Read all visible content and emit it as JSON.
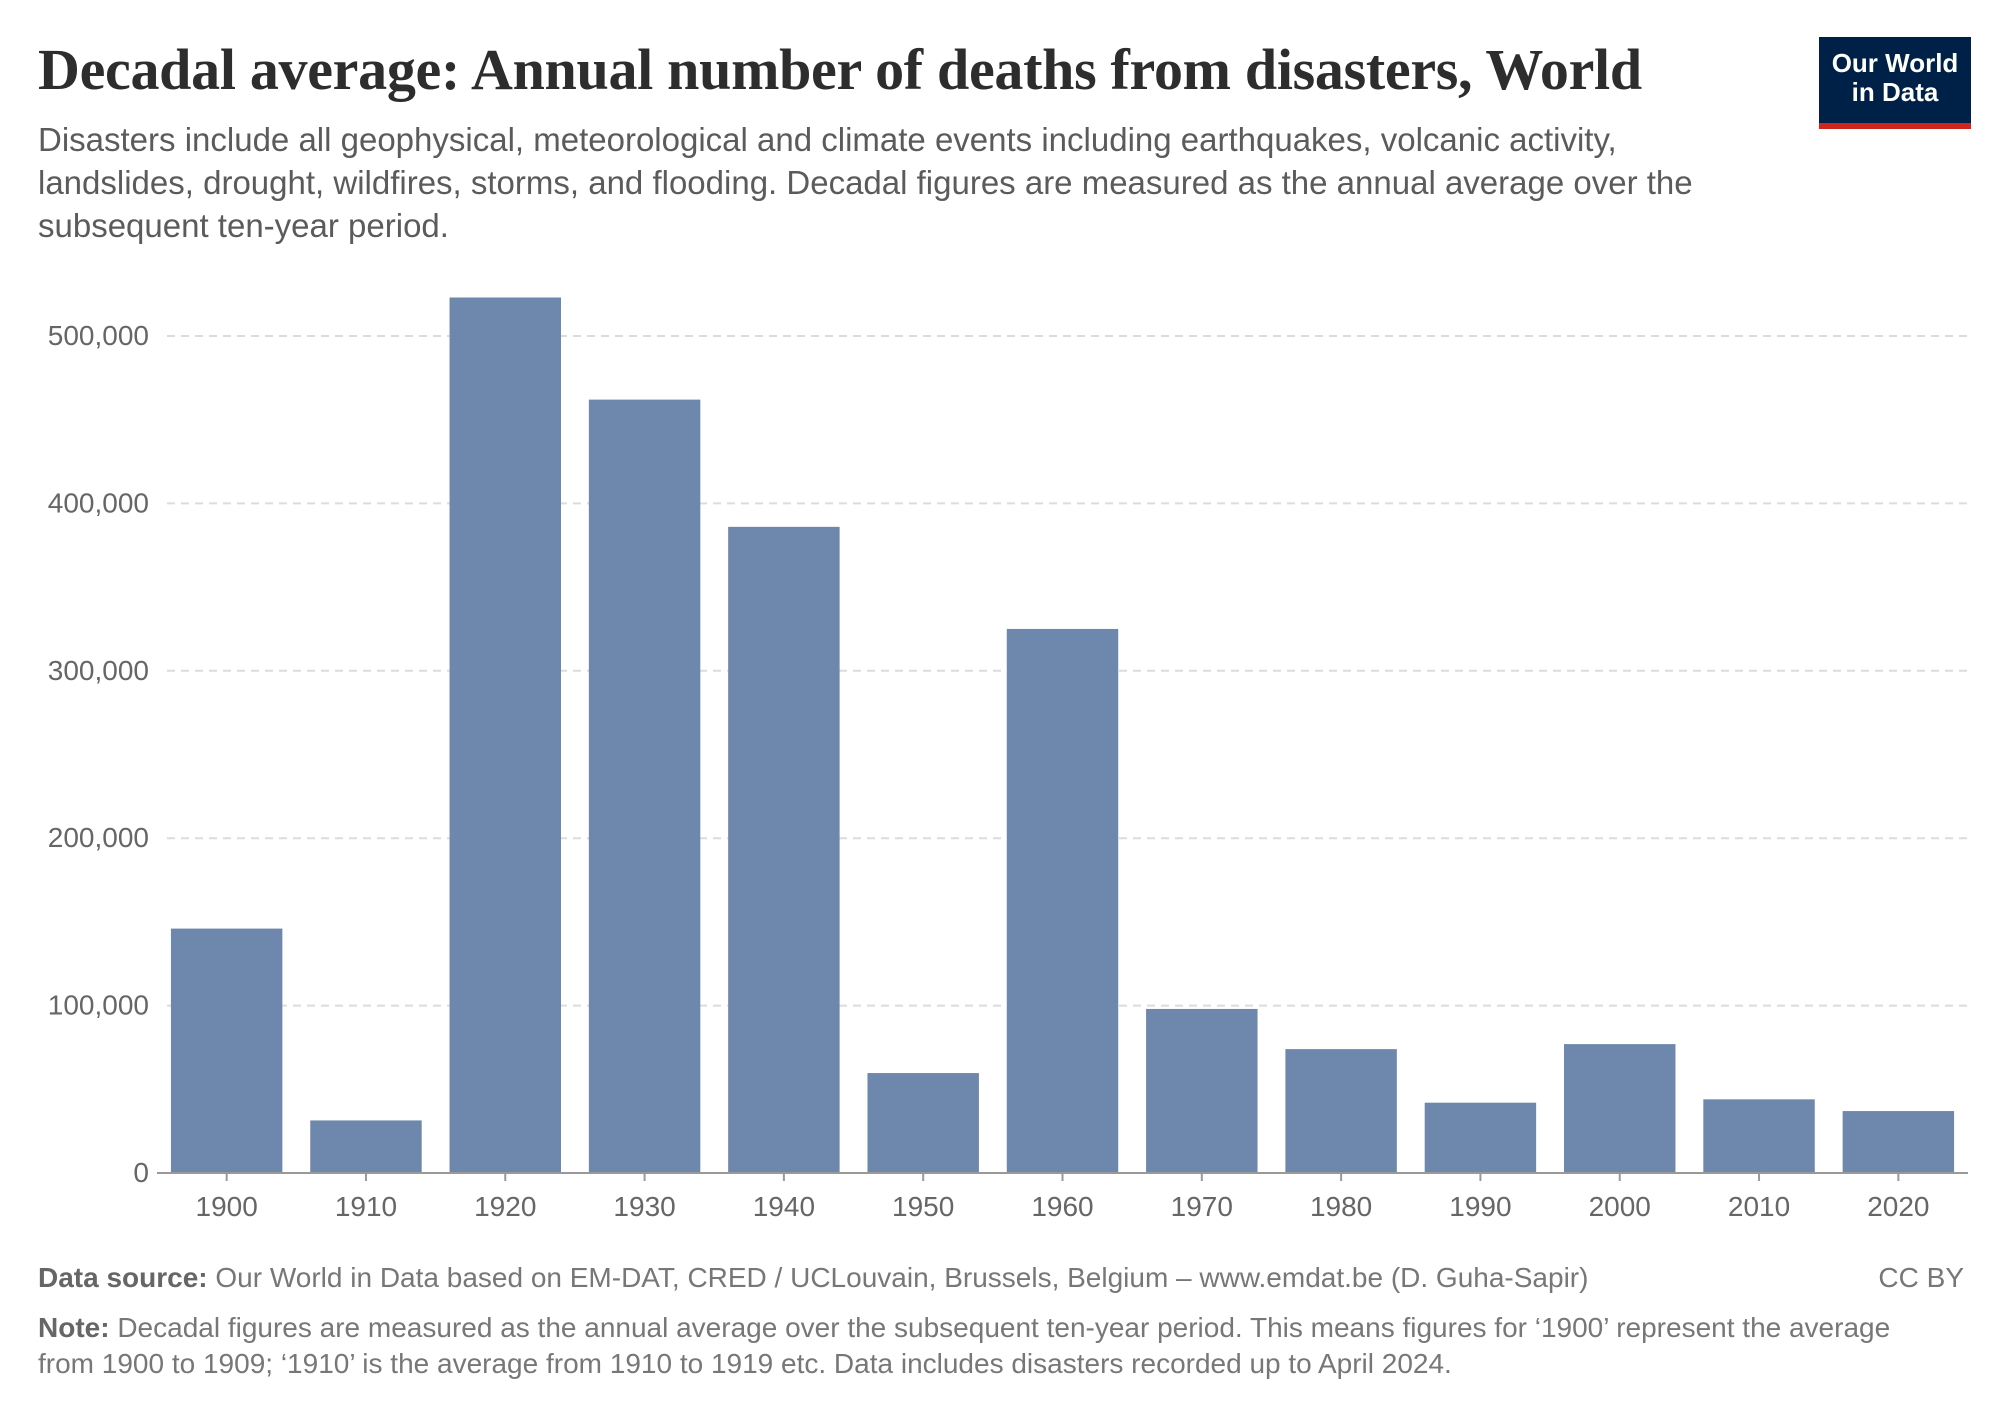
{
  "header": {
    "title": "Decadal average: Annual number of deaths from disasters, World",
    "subtitle": "Disasters include all geophysical, meteorological and climate events including earthquakes, volcanic activity, landslides, drought, wildfires, storms, and flooding. Decadal figures are measured as the annual average over the subsequent ten-year period.",
    "logo_line1": "Our World",
    "logo_line2": "in Data"
  },
  "footer": {
    "source_label": "Data source:",
    "source_text": " Our World in Data based on EM-DAT, CRED / UCLouvain, Brussels, Belgium – www.emdat.be (D. Guha-Sapir)",
    "license": "CC BY",
    "note_label": "Note:",
    "note_text": " Decadal figures are measured as the annual average over the subsequent ten-year period. This means figures for ‘1900’ represent the average from 1900 to 1909; ‘1910’ is the average from 1910 to 1919 etc. Data includes disasters recorded up to April 2024."
  },
  "colors": {
    "bar": "#6d87ad",
    "logo_bg": "#002147",
    "logo_accent": "#ce261e"
  },
  "chart_data": {
    "type": "bar",
    "categories": [
      "1900",
      "1910",
      "1920",
      "1930",
      "1940",
      "1950",
      "1960",
      "1970",
      "1980",
      "1990",
      "2000",
      "2010",
      "2020"
    ],
    "values": [
      146000,
      31400,
      523000,
      462000,
      386000,
      59700,
      325000,
      98000,
      74000,
      42000,
      77000,
      44000,
      37000
    ],
    "ylim": [
      0,
      500000
    ],
    "yticks": [
      0,
      100000,
      200000,
      300000,
      400000,
      500000
    ],
    "ytick_labels": [
      "0",
      "100,000",
      "200,000",
      "300,000",
      "400,000",
      "500,000"
    ],
    "grid": true,
    "xlabel": "",
    "ylabel": ""
  }
}
